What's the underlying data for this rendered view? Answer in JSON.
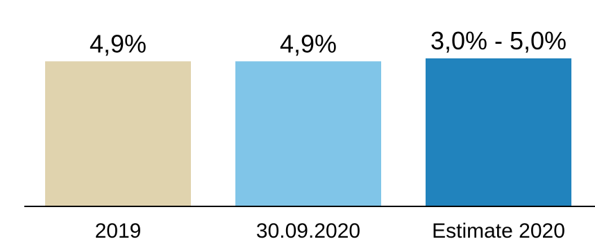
{
  "chart_data": {
    "type": "bar",
    "categories": [
      "2019",
      "30.09.2020",
      "Estimate 2020"
    ],
    "values": [
      4.9,
      4.9,
      5.0
    ],
    "data_labels": [
      "4,9%",
      "4,9%",
      "3,0% - 5,0%"
    ],
    "colors": [
      "#e0d3ae",
      "#80c5e8",
      "#2183bd"
    ],
    "axis_color": "#000000",
    "title": "",
    "xlabel": "",
    "ylabel": "",
    "ylim": [
      0,
      5.0
    ],
    "grid": false,
    "legend": "none"
  }
}
